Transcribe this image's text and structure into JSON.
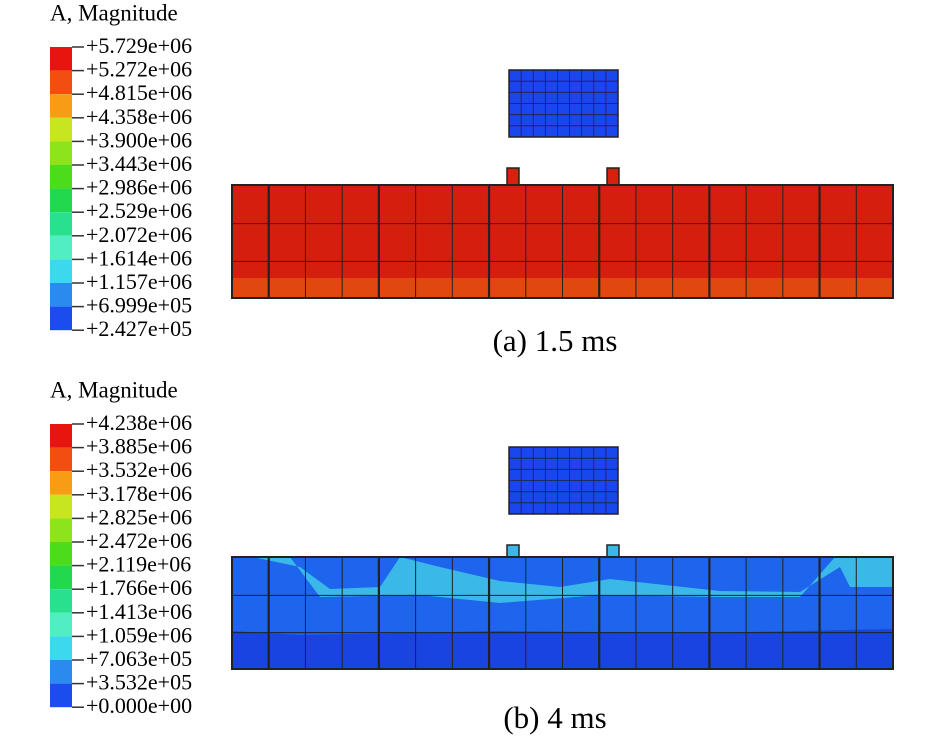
{
  "panels": [
    {
      "legend_title": "A, Magnitude",
      "legend_labels": [
        "+5.729e+06",
        "+5.272e+06",
        "+4.815e+06",
        "+4.358e+06",
        "+3.900e+06",
        "+3.443e+06",
        "+2.986e+06",
        "+2.529e+06",
        "+2.072e+06",
        "+1.614e+06",
        "+1.157e+06",
        "+6.999e+05",
        "+2.427e+05"
      ],
      "caption": "(a) 1.5 ms"
    },
    {
      "legend_title": "A, Magnitude",
      "legend_labels": [
        "+4.238e+06",
        "+3.885e+06",
        "+3.532e+06",
        "+3.178e+06",
        "+2.825e+06",
        "+2.472e+06",
        "+2.119e+06",
        "+1.766e+06",
        "+1.413e+06",
        "+1.059e+06",
        "+7.063e+05",
        "+3.532e+05",
        "+0.000e+00"
      ],
      "caption": "(b) 4 ms"
    }
  ]
}
